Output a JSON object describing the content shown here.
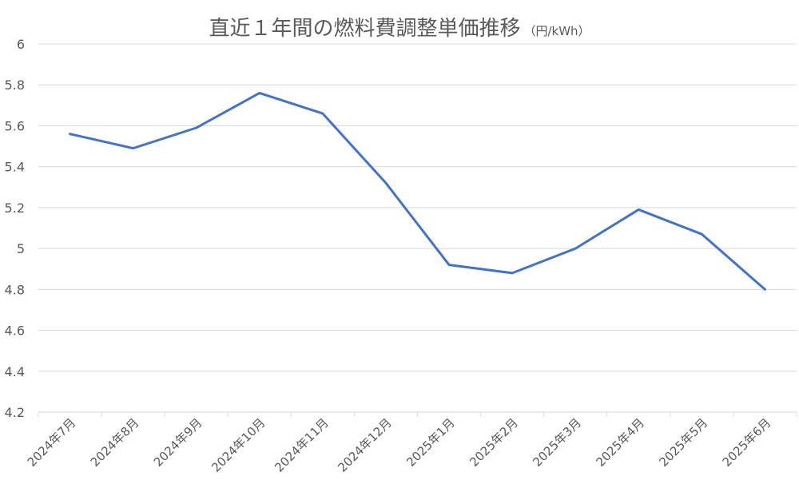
{
  "chart_data": {
    "type": "line",
    "title": "直近１年間の燃料費調整単価推移",
    "title_unit": "（円/kWh）",
    "xlabel": "",
    "ylabel": "",
    "categories": [
      "2024年7月",
      "2024年8月",
      "2024年9月",
      "2024年10月",
      "2024年11月",
      "2024年12月",
      "2025年1月",
      "2025年2月",
      "2025年3月",
      "2025年4月",
      "2025年5月",
      "2025年6月"
    ],
    "series": [
      {
        "values": [
          5.56,
          5.49,
          5.59,
          5.76,
          5.66,
          5.32,
          4.92,
          4.88,
          5.0,
          5.19,
          5.07,
          4.8
        ]
      }
    ],
    "ylim": [
      4.2,
      6
    ],
    "yticks": [
      "4.2",
      "4.4",
      "4.6",
      "4.8",
      "5",
      "5.2",
      "5.4",
      "5.6",
      "5.8",
      "6"
    ],
    "grid": true,
    "legend": "none",
    "colors": {
      "line": "#4472c4",
      "grid": "#d9d9d9",
      "text": "#595959"
    }
  }
}
